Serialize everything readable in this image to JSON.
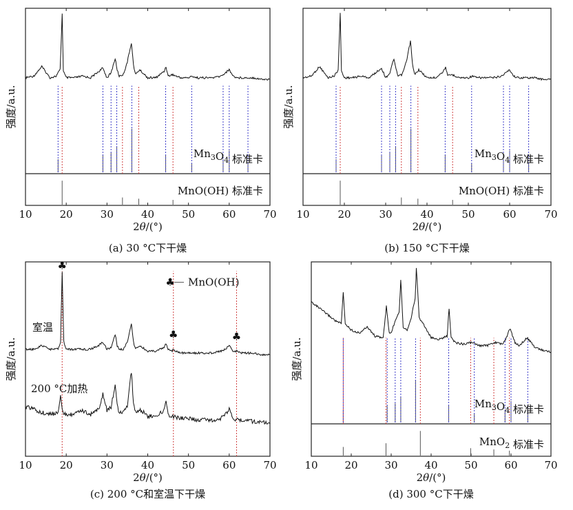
{
  "chart_data": [
    {
      "type": "line",
      "caption": "(a) 30 °C下干燥",
      "xlabel": "2θ/(°)",
      "ylabel": "强度/a.u.",
      "xlim": [
        10,
        70
      ],
      "xticks": [
        10,
        20,
        30,
        40,
        50,
        60,
        70
      ],
      "grid": false,
      "series": [
        {
          "role": "pattern",
          "baseline": 0.6,
          "x": [
            10,
            12,
            14,
            16,
            17.5,
            18.5,
            19.0,
            19.3,
            20,
            22,
            24,
            26,
            28,
            29,
            30,
            31,
            32,
            32.5,
            33,
            34,
            35,
            36,
            36.5,
            37,
            38,
            40,
            42,
            44,
            44.5,
            45,
            46,
            48,
            50,
            51,
            52,
            54,
            56,
            58,
            59,
            60,
            61,
            62,
            64,
            66,
            68,
            70
          ],
          "y": [
            0.6,
            0.61,
            0.67,
            0.6,
            0.61,
            0.65,
            1.0,
            0.64,
            0.6,
            0.6,
            0.61,
            0.6,
            0.64,
            0.66,
            0.6,
            0.63,
            0.72,
            0.65,
            0.61,
            0.62,
            0.7,
            0.82,
            0.68,
            0.62,
            0.65,
            0.6,
            0.6,
            0.64,
            0.67,
            0.61,
            0.62,
            0.6,
            0.6,
            0.61,
            0.6,
            0.6,
            0.6,
            0.61,
            0.63,
            0.65,
            0.61,
            0.6,
            0.6,
            0.6,
            0.59,
            0.59
          ]
        }
      ],
      "reference_panels": [
        {
          "label_parts": [
            "Mn",
            "3",
            "O",
            "4",
            " 标准卡"
          ],
          "color": "#3a3ac8",
          "lines": [
            {
              "x": 18.0,
              "h": 0.3
            },
            {
              "x": 29.0,
              "h": 0.4
            },
            {
              "x": 31.0,
              "h": 0.45
            },
            {
              "x": 32.4,
              "h": 0.6
            },
            {
              "x": 36.1,
              "h": 1.0
            },
            {
              "x": 44.4,
              "h": 0.4
            },
            {
              "x": 50.8,
              "h": 0.2
            },
            {
              "x": 58.5,
              "h": 0.3
            },
            {
              "x": 60.0,
              "h": 0.5
            },
            {
              "x": 64.6,
              "h": 0.2
            }
          ]
        },
        {
          "label_parts": [
            "MnO(OH) 标准卡"
          ],
          "color": "#d04040",
          "lines": [
            {
              "x": 19.0,
              "h": 1.0
            },
            {
              "x": 33.8,
              "h": 0.3
            },
            {
              "x": 37.8,
              "h": 0.25
            },
            {
              "x": 46.2,
              "h": 0.2
            }
          ]
        }
      ]
    },
    {
      "type": "line",
      "caption": "(b) 150 °C下干燥",
      "xlabel": "2θ/(°)",
      "ylabel": "强度/a.u.",
      "xlim": [
        10,
        70
      ],
      "xticks": [
        10,
        20,
        30,
        40,
        50,
        60,
        70
      ],
      "grid": false,
      "series": [
        {
          "role": "pattern",
          "baseline": 0.6,
          "x": [
            10,
            12,
            14,
            16,
            17.5,
            18.5,
            19.0,
            19.3,
            20,
            22,
            24,
            26,
            28,
            29,
            30,
            31,
            32,
            32.5,
            33,
            34,
            35,
            36,
            36.5,
            37,
            38,
            40,
            42,
            44,
            44.5,
            45,
            46,
            48,
            50,
            51,
            52,
            54,
            56,
            58,
            59,
            60,
            61,
            62,
            64,
            66,
            68,
            70
          ],
          "y": [
            0.6,
            0.61,
            0.67,
            0.6,
            0.61,
            0.65,
            1.0,
            0.64,
            0.6,
            0.6,
            0.61,
            0.6,
            0.64,
            0.66,
            0.6,
            0.63,
            0.72,
            0.65,
            0.61,
            0.62,
            0.7,
            0.83,
            0.68,
            0.62,
            0.65,
            0.6,
            0.6,
            0.64,
            0.67,
            0.61,
            0.62,
            0.6,
            0.6,
            0.61,
            0.6,
            0.6,
            0.6,
            0.61,
            0.63,
            0.65,
            0.61,
            0.6,
            0.6,
            0.6,
            0.59,
            0.59
          ]
        }
      ],
      "reference_panels": [
        {
          "label_parts": [
            "Mn",
            "3",
            "O",
            "4",
            " 标准卡"
          ],
          "color": "#3a3ac8",
          "lines": [
            {
              "x": 18.0,
              "h": 0.3
            },
            {
              "x": 29.0,
              "h": 0.4
            },
            {
              "x": 31.0,
              "h": 0.45
            },
            {
              "x": 32.4,
              "h": 0.6
            },
            {
              "x": 36.1,
              "h": 1.0
            },
            {
              "x": 44.4,
              "h": 0.4
            },
            {
              "x": 50.8,
              "h": 0.2
            },
            {
              "x": 58.5,
              "h": 0.3
            },
            {
              "x": 60.0,
              "h": 0.5
            },
            {
              "x": 64.6,
              "h": 0.2
            }
          ]
        },
        {
          "label_parts": [
            "MnO(OH) 标准卡"
          ],
          "color": "#d04040",
          "lines": [
            {
              "x": 19.0,
              "h": 1.0
            },
            {
              "x": 33.8,
              "h": 0.3
            },
            {
              "x": 37.8,
              "h": 0.25
            },
            {
              "x": 46.2,
              "h": 0.2
            }
          ]
        }
      ]
    },
    {
      "type": "line",
      "caption": "(c) 200 °C和室温下干燥",
      "xlabel": "2θ/(°)",
      "ylabel": "强度/a.u.",
      "xlim": [
        10,
        70
      ],
      "xticks": [
        10,
        20,
        30,
        40,
        50,
        60,
        70
      ],
      "grid": false,
      "legend": {
        "marker": "♣",
        "label": "MnO(OH)"
      },
      "series": [
        {
          "name": "室温",
          "baseline": 0.56,
          "x": [
            10,
            12,
            14,
            16,
            18,
            18.6,
            19.0,
            19.4,
            20,
            22,
            24,
            26,
            28,
            29,
            30,
            31,
            32,
            32.5,
            33,
            34,
            35,
            36,
            36.5,
            37,
            38,
            40,
            42,
            44,
            44.5,
            45,
            46,
            46.3,
            47,
            48,
            50,
            52,
            54,
            56,
            58,
            59,
            60,
            61,
            62,
            63,
            64,
            66,
            68,
            70
          ],
          "y": [
            0.56,
            0.56,
            0.58,
            0.56,
            0.56,
            0.6,
            0.98,
            0.6,
            0.56,
            0.56,
            0.56,
            0.56,
            0.58,
            0.6,
            0.56,
            0.57,
            0.64,
            0.58,
            0.56,
            0.56,
            0.6,
            0.7,
            0.6,
            0.56,
            0.58,
            0.55,
            0.55,
            0.57,
            0.59,
            0.56,
            0.55,
            0.56,
            0.55,
            0.54,
            0.54,
            0.54,
            0.54,
            0.54,
            0.55,
            0.56,
            0.58,
            0.55,
            0.55,
            0.54,
            0.54,
            0.54,
            0.53,
            0.53
          ]
        },
        {
          "name": "200 °C加热",
          "baseline": 0.22,
          "x": [
            10,
            12,
            14,
            16,
            18,
            18.6,
            19.0,
            19.4,
            20,
            22,
            24,
            26,
            28,
            29,
            30,
            31,
            32,
            32.5,
            33,
            34,
            35,
            36,
            36.5,
            37,
            38,
            40,
            42,
            44,
            44.5,
            45,
            46,
            48,
            50,
            52,
            54,
            56,
            58,
            59,
            60,
            61,
            62,
            64,
            66,
            68,
            70
          ],
          "y": [
            0.25,
            0.24,
            0.22,
            0.21,
            0.22,
            0.32,
            0.24,
            0.21,
            0.21,
            0.21,
            0.23,
            0.21,
            0.24,
            0.32,
            0.23,
            0.25,
            0.37,
            0.26,
            0.22,
            0.22,
            0.26,
            0.44,
            0.27,
            0.22,
            0.24,
            0.2,
            0.2,
            0.23,
            0.28,
            0.21,
            0.2,
            0.19,
            0.19,
            0.18,
            0.18,
            0.18,
            0.19,
            0.21,
            0.24,
            0.19,
            0.18,
            0.18,
            0.17,
            0.17,
            0.16
          ]
        }
      ],
      "markers": [
        {
          "x": 19.0,
          "y": 0.99,
          "symbol": "♣"
        },
        {
          "x": 46.3,
          "y": 0.62,
          "symbol": "♣"
        },
        {
          "x": 61.8,
          "y": 0.61,
          "symbol": "♣"
        }
      ],
      "guides": [
        19.0,
        46.3,
        61.8
      ]
    },
    {
      "type": "line",
      "caption": "(d) 300 °C下干燥",
      "xlabel": "2θ/(°)",
      "ylabel": "强度/a.u.",
      "xlim": [
        10,
        70
      ],
      "xticks": [
        10,
        20,
        30,
        40,
        50,
        60,
        70
      ],
      "grid": false,
      "series": [
        {
          "role": "pattern",
          "baseline": 0.5,
          "x": [
            10,
            12,
            14,
            16,
            17.5,
            18.0,
            18.5,
            20,
            22,
            24,
            26,
            28,
            28.8,
            29.5,
            30,
            31,
            32,
            32.4,
            33,
            34,
            35,
            36,
            36.3,
            37,
            38,
            40,
            42,
            44,
            44.5,
            45,
            46,
            48,
            50,
            52,
            54,
            56,
            58,
            59,
            59.7,
            61,
            62,
            64,
            66,
            68,
            70
          ],
          "y": [
            0.78,
            0.74,
            0.7,
            0.66,
            0.64,
            0.84,
            0.64,
            0.6,
            0.58,
            0.62,
            0.56,
            0.55,
            0.75,
            0.58,
            0.58,
            0.66,
            0.72,
            0.92,
            0.62,
            0.6,
            0.68,
            0.8,
            1.0,
            0.68,
            0.64,
            0.55,
            0.54,
            0.56,
            0.74,
            0.55,
            0.52,
            0.51,
            0.52,
            0.5,
            0.5,
            0.52,
            0.51,
            0.56,
            0.61,
            0.52,
            0.5,
            0.55,
            0.49,
            0.47,
            0.46
          ]
        }
      ],
      "reference_panels": [
        {
          "label_parts": [
            "Mn",
            "3",
            "O",
            "4",
            " 标准卡"
          ],
          "color": "#3a3ac8",
          "lines": [
            {
              "x": 18.0,
              "h": 0.3
            },
            {
              "x": 29.0,
              "h": 0.4
            },
            {
              "x": 31.0,
              "h": 0.45
            },
            {
              "x": 32.4,
              "h": 0.6
            },
            {
              "x": 36.1,
              "h": 1.0
            },
            {
              "x": 44.4,
              "h": 0.4
            },
            {
              "x": 50.8,
              "h": 0.2
            },
            {
              "x": 58.5,
              "h": 0.3
            },
            {
              "x": 60.0,
              "h": 0.5
            },
            {
              "x": 64.2,
              "h": 0.2
            }
          ]
        },
        {
          "label_parts": [
            "MnO",
            "2",
            " 标准卡"
          ],
          "color": "#d04040",
          "lines": [
            {
              "x": 18.0,
              "h": 0.35
            },
            {
              "x": 28.7,
              "h": 0.5
            },
            {
              "x": 37.3,
              "h": 1.0
            },
            {
              "x": 49.9,
              "h": 0.3
            },
            {
              "x": 55.7,
              "h": 0.25
            },
            {
              "x": 59.6,
              "h": 0.2
            }
          ]
        }
      ]
    }
  ]
}
